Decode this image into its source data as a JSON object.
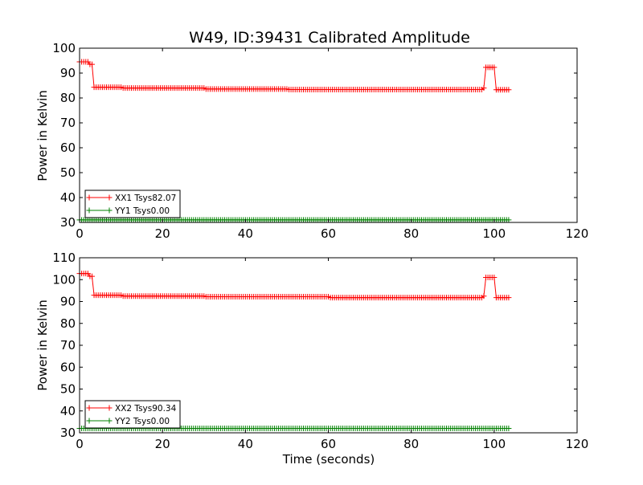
{
  "chart_data": [
    {
      "type": "line",
      "title": "W49, ID:39431 Calibrated Amplitude",
      "xlabel": "",
      "ylabel": "Power in Kelvin",
      "xlim": [
        0,
        120
      ],
      "ylim": [
        30,
        100
      ],
      "xticks": [
        "0",
        "20",
        "40",
        "60",
        "80",
        "100",
        "120"
      ],
      "yticks": [
        "30",
        "40",
        "50",
        "60",
        "70",
        "80",
        "90",
        "100"
      ],
      "legend_position": "bottom-left",
      "grid": false,
      "series": [
        {
          "name": "XX1 Tsys82.07",
          "color": "#ff0000",
          "marker": "+",
          "x_start": 0.0,
          "x_end": 103.5,
          "x_step": 0.5,
          "segments": [
            {
              "from": 0.0,
              "to": 2.4,
              "y": 94.5
            },
            {
              "from": 2.5,
              "to": 3.0,
              "y": 93.5
            },
            {
              "from": 3.5,
              "to": 10.0,
              "y": 84.3
            },
            {
              "from": 10.5,
              "to": 30.0,
              "y": 84.0
            },
            {
              "from": 30.5,
              "to": 50.0,
              "y": 83.6
            },
            {
              "from": 50.5,
              "to": 97.0,
              "y": 83.4
            },
            {
              "from": 97.5,
              "to": 97.9,
              "y": 84.0
            },
            {
              "from": 98.0,
              "to": 100.0,
              "y": 92.3
            },
            {
              "from": 100.5,
              "to": 103.5,
              "y": 83.3
            }
          ]
        },
        {
          "name": "YY1 Tsys0.00",
          "color": "#008000",
          "marker": "+",
          "x_start": 0.0,
          "x_end": 103.5,
          "x_step": 0.5,
          "segments": [
            {
              "from": 0.0,
              "to": 103.5,
              "y": 31.0
            }
          ]
        }
      ]
    },
    {
      "type": "line",
      "title": "",
      "xlabel": "Time (seconds)",
      "ylabel": "Power in Kelvin",
      "xlim": [
        0,
        120
      ],
      "ylim": [
        30,
        110
      ],
      "xticks": [
        "0",
        "20",
        "40",
        "60",
        "80",
        "100",
        "120"
      ],
      "yticks": [
        "30",
        "40",
        "50",
        "60",
        "70",
        "80",
        "90",
        "100",
        "110"
      ],
      "legend_position": "bottom-left",
      "grid": false,
      "series": [
        {
          "name": "XX2 Tsys90.34",
          "color": "#ff0000",
          "marker": "+",
          "x_start": 0.0,
          "x_end": 103.5,
          "x_step": 0.5,
          "segments": [
            {
              "from": 0.0,
              "to": 2.4,
              "y": 102.8
            },
            {
              "from": 2.5,
              "to": 3.0,
              "y": 101.5
            },
            {
              "from": 3.5,
              "to": 10.0,
              "y": 92.9
            },
            {
              "from": 10.5,
              "to": 30.0,
              "y": 92.5
            },
            {
              "from": 30.5,
              "to": 60.0,
              "y": 92.2
            },
            {
              "from": 60.5,
              "to": 97.0,
              "y": 91.8
            },
            {
              "from": 97.5,
              "to": 97.9,
              "y": 92.5
            },
            {
              "from": 98.0,
              "to": 100.0,
              "y": 101.0
            },
            {
              "from": 100.5,
              "to": 103.5,
              "y": 91.8
            }
          ]
        },
        {
          "name": "YY2 Tsys0.00",
          "color": "#008000",
          "marker": "+",
          "x_start": 0.0,
          "x_end": 103.5,
          "x_step": 0.5,
          "segments": [
            {
              "from": 0.0,
              "to": 103.5,
              "y": 32.0
            }
          ]
        }
      ]
    }
  ]
}
